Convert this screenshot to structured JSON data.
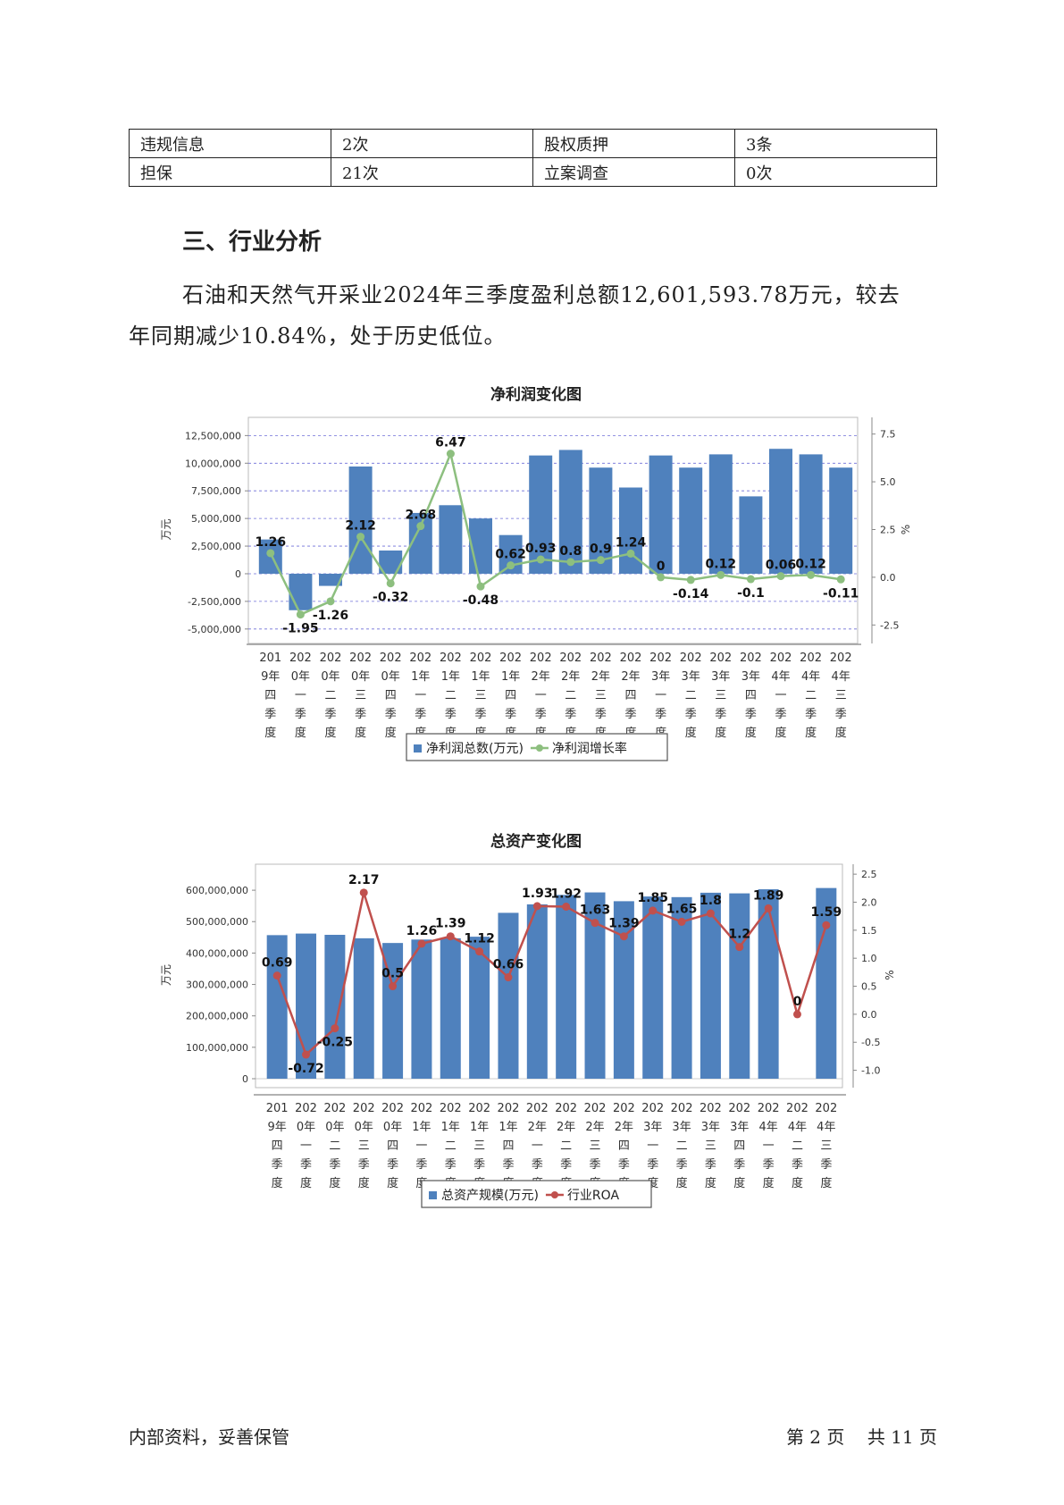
{
  "info_table": [
    [
      "违规信息",
      "2次",
      "股权质押",
      "3条"
    ],
    [
      "担保",
      "21次",
      "立案调查",
      "0次"
    ]
  ],
  "section_title": "三、行业分析",
  "paragraph": {
    "line1": "石油和天然气开采业2024年三季度盈利总额12,601,593.78万元，较去",
    "line2": "年同期减少10.84%，处于历史低位。"
  },
  "footer": {
    "left": "内部资料，妥善保管",
    "right": "第 2 页    共 11 页"
  },
  "colors": {
    "bar": "#4f81bd",
    "line1": "#8dbf7f",
    "line2": "#c0504d"
  },
  "chart_data": [
    {
      "type": "bar",
      "title": "净利润变化图",
      "ylabel": "万元",
      "y2label": "%",
      "grid": true,
      "legend_position": "bottom",
      "categories": [
        [
          "201",
          "9年",
          "四",
          "季",
          "度"
        ],
        [
          "202",
          "0年",
          "一",
          "季",
          "度"
        ],
        [
          "202",
          "0年",
          "二",
          "季",
          "度"
        ],
        [
          "202",
          "0年",
          "三",
          "季",
          "度"
        ],
        [
          "202",
          "0年",
          "四",
          "季",
          "度"
        ],
        [
          "202",
          "1年",
          "一",
          "季",
          "度"
        ],
        [
          "202",
          "1年",
          "二",
          "季",
          "度"
        ],
        [
          "202",
          "1年",
          "三",
          "季",
          "度"
        ],
        [
          "202",
          "1年",
          "四",
          "季",
          "度"
        ],
        [
          "202",
          "2年",
          "一",
          "季",
          "度"
        ],
        [
          "202",
          "2年",
          "二",
          "季",
          "度"
        ],
        [
          "202",
          "2年",
          "三",
          "季",
          "度"
        ],
        [
          "202",
          "2年",
          "四",
          "季",
          "度"
        ],
        [
          "202",
          "3年",
          "一",
          "季",
          "度"
        ],
        [
          "202",
          "3年",
          "二",
          "季",
          "度"
        ],
        [
          "202",
          "3年",
          "三",
          "季",
          "度"
        ],
        [
          "202",
          "3年",
          "四",
          "季",
          "度"
        ],
        [
          "202",
          "4年",
          "一",
          "季",
          "度"
        ],
        [
          "202",
          "4年",
          "二",
          "季",
          "度"
        ],
        [
          "202",
          "4年",
          "三",
          "季",
          "度"
        ]
      ],
      "ylim": [
        -5500000,
        13500000
      ],
      "yticks": [
        -5000000,
        -2500000,
        0,
        2500000,
        5000000,
        7500000,
        10000000,
        12500000
      ],
      "ytick_labels": [
        "-5,000,000",
        "-2,500,000",
        "0",
        "2,500,000",
        "5,000,000",
        "7,500,000",
        "10,000,000",
        "12,500,000"
      ],
      "y2lim": [
        -3.0,
        8.0
      ],
      "y2ticks": [
        -2.5,
        0,
        2.5,
        5,
        7.5
      ],
      "y2tick_labels": [
        "-2.5",
        "0.0",
        "2.5",
        "5.0",
        "7.5"
      ],
      "series": [
        {
          "name": "净利润总数(万元)",
          "type": "bar",
          "axis": "left",
          "values": [
            3100000,
            -3300000,
            -1100000,
            9700000,
            2100000,
            5500000,
            6200000,
            5000000,
            3500000,
            10700000,
            11200000,
            9600000,
            7800000,
            10700000,
            9600000,
            10800000,
            7000000,
            11300000,
            10800000,
            9600000
          ]
        },
        {
          "name": "净利润增长率",
          "type": "line",
          "axis": "right",
          "values": [
            1.26,
            -1.95,
            -1.26,
            2.12,
            -0.32,
            2.68,
            6.47,
            -0.48,
            0.62,
            0.93,
            0.8,
            0.9,
            1.24,
            0,
            -0.14,
            0.12,
            -0.1,
            0.06,
            0.12,
            -0.11
          ],
          "labels": [
            "1.26",
            "-1.95",
            "-1.26",
            "2.12",
            "-0.32",
            "2.68",
            "6.47",
            "-0.48",
            "0.62",
            "0.93",
            "0.8",
            "0.9",
            "1.24",
            "0",
            "-0.14",
            "0.12",
            "-0.1",
            "0.06",
            "0.12",
            "-0.11"
          ]
        }
      ]
    },
    {
      "type": "bar",
      "title": "总资产变化图",
      "ylabel": "万元",
      "y2label": "%",
      "grid": false,
      "legend_position": "bottom",
      "categories": [
        [
          "201",
          "9年",
          "四",
          "季",
          "度"
        ],
        [
          "202",
          "0年",
          "一",
          "季",
          "度"
        ],
        [
          "202",
          "0年",
          "二",
          "季",
          "度"
        ],
        [
          "202",
          "0年",
          "三",
          "季",
          "度"
        ],
        [
          "202",
          "0年",
          "四",
          "季",
          "度"
        ],
        [
          "202",
          "1年",
          "一",
          "季",
          "度"
        ],
        [
          "202",
          "1年",
          "二",
          "季",
          "度"
        ],
        [
          "202",
          "1年",
          "三",
          "季",
          "度"
        ],
        [
          "202",
          "1年",
          "四",
          "季",
          "度"
        ],
        [
          "202",
          "2年",
          "一",
          "季",
          "度"
        ],
        [
          "202",
          "2年",
          "二",
          "季",
          "度"
        ],
        [
          "202",
          "2年",
          "三",
          "季",
          "度"
        ],
        [
          "202",
          "2年",
          "四",
          "季",
          "度"
        ],
        [
          "202",
          "3年",
          "一",
          "季",
          "度"
        ],
        [
          "202",
          "3年",
          "二",
          "季",
          "度"
        ],
        [
          "202",
          "3年",
          "三",
          "季",
          "度"
        ],
        [
          "202",
          "3年",
          "四",
          "季",
          "度"
        ],
        [
          "202",
          "4年",
          "一",
          "季",
          "度"
        ],
        [
          "202",
          "4年",
          "二",
          "季",
          "度"
        ],
        [
          "202",
          "4年",
          "三",
          "季",
          "度"
        ]
      ],
      "ylim": [
        0,
        660000000
      ],
      "yticks": [
        0,
        100000000,
        200000000,
        300000000,
        400000000,
        500000000,
        600000000
      ],
      "ytick_labels": [
        "0",
        "100,000,000",
        "200,000,000",
        "300,000,000",
        "400,000,000",
        "500,000,000",
        "600,000,000"
      ],
      "y2lim": [
        -1.15,
        2.55
      ],
      "y2ticks": [
        -1.0,
        -0.5,
        0,
        0.5,
        1.0,
        1.5,
        2.0,
        2.5
      ],
      "y2tick_labels": [
        "-1.0",
        "-0.5",
        "0.0",
        "0.5",
        "1.0",
        "1.5",
        "2.0",
        "2.5"
      ],
      "series": [
        {
          "name": "总资产规模(万元)",
          "type": "bar",
          "axis": "left",
          "values": [
            457000000,
            462000000,
            458000000,
            447000000,
            432000000,
            443000000,
            447000000,
            452000000,
            528000000,
            555000000,
            585000000,
            593000000,
            565000000,
            580000000,
            578000000,
            592000000,
            590000000,
            603000000,
            0,
            607000000
          ]
        },
        {
          "name": "行业ROA",
          "type": "line",
          "axis": "right",
          "values": [
            0.69,
            -0.72,
            -0.25,
            2.17,
            0.5,
            1.26,
            1.39,
            1.12,
            0.66,
            1.93,
            1.92,
            1.63,
            1.39,
            1.85,
            1.65,
            1.8,
            1.2,
            1.89,
            0,
            1.59
          ],
          "labels": [
            "0.69",
            "-0.72",
            "-0.25",
            "2.17",
            "0.5",
            "1.26",
            "1.39",
            "1.12",
            "0.66",
            "1.93",
            "1.92",
            "1.63",
            "1.39",
            "1.85",
            "1.65",
            "1.8",
            "1.2",
            "1.89",
            "0",
            "1.59"
          ]
        }
      ]
    }
  ]
}
